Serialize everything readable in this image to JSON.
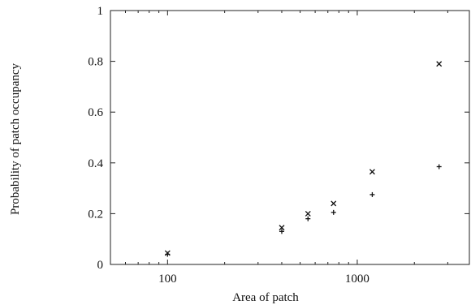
{
  "chart_data": {
    "type": "scatter",
    "title": "",
    "xlabel": "Area of patch",
    "ylabel": "Probability of patch occupancy",
    "x_scale": "log",
    "xlim": [
      50,
      3900
    ],
    "ylim": [
      0,
      1
    ],
    "x_ticks": [
      {
        "value": 100,
        "label": "100"
      },
      {
        "value": 1000,
        "label": "1000"
      }
    ],
    "y_ticks": [
      {
        "value": 0,
        "label": "0"
      },
      {
        "value": 0.2,
        "label": "0.2"
      },
      {
        "value": 0.4,
        "label": "0.4"
      },
      {
        "value": 0.6,
        "label": "0.6"
      },
      {
        "value": 0.8,
        "label": "0.8"
      },
      {
        "value": 1,
        "label": "1"
      }
    ],
    "grid": false,
    "legend": "none",
    "series": [
      {
        "marker": "cross-x",
        "points": [
          {
            "x": 100,
            "y": 0.045
          },
          {
            "x": 400,
            "y": 0.145
          },
          {
            "x": 550,
            "y": 0.2
          },
          {
            "x": 750,
            "y": 0.24
          },
          {
            "x": 1200,
            "y": 0.365
          },
          {
            "x": 2700,
            "y": 0.79
          }
        ]
      },
      {
        "marker": "plus",
        "points": [
          {
            "x": 100,
            "y": 0.04
          },
          {
            "x": 400,
            "y": 0.13
          },
          {
            "x": 550,
            "y": 0.18
          },
          {
            "x": 750,
            "y": 0.205
          },
          {
            "x": 1200,
            "y": 0.275
          },
          {
            "x": 2700,
            "y": 0.385
          }
        ]
      }
    ]
  }
}
